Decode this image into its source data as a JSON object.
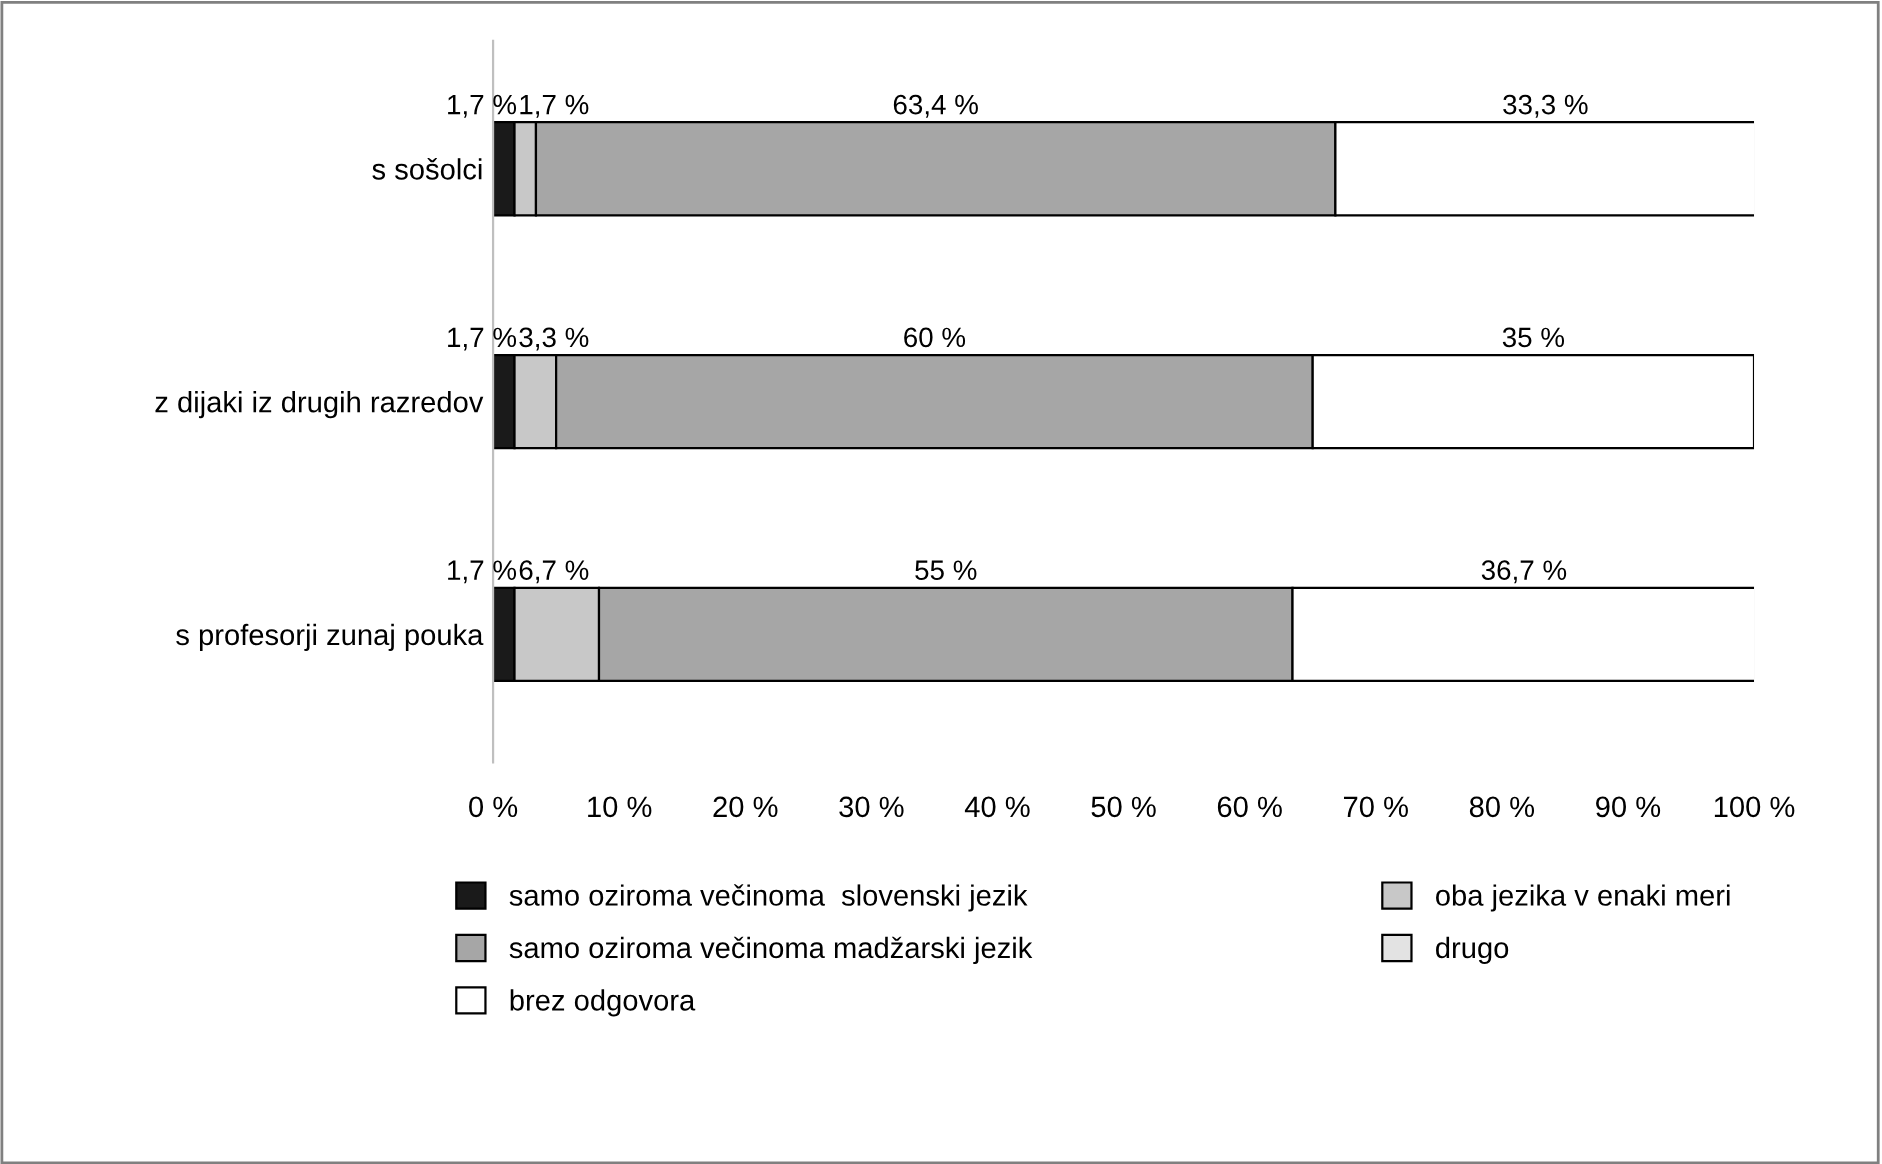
{
  "chart_data": {
    "type": "bar",
    "orientation": "horizontal",
    "stacked": true,
    "categories": [
      "s sošolci",
      "z dijaki iz drugih razredov",
      "s profesorji zunaj pouka"
    ],
    "series": [
      {
        "name": "samo oziroma večinoma  slovenski jezik",
        "color": "#1a1a1a",
        "values": [
          1.7,
          1.7,
          1.7
        ],
        "value_labels": [
          "1,7 %",
          "1,7 %",
          "1,7 %"
        ]
      },
      {
        "name": "oba jezika v enaki meri",
        "color": "#c8c8c8",
        "values": [
          1.7,
          3.3,
          6.7
        ],
        "value_labels": [
          "1,7 %",
          "3,3 %",
          "6,7 %"
        ]
      },
      {
        "name": "samo oziroma večinoma madžarski jezik",
        "color": "#a6a6a6",
        "values": [
          63.4,
          60,
          55
        ],
        "value_labels": [
          "63,4 %",
          "60 %",
          "55 %"
        ]
      },
      {
        "name": "drugo",
        "color": "#e3e3e3",
        "values": [
          0,
          0,
          0
        ]
      },
      {
        "name": "brez odgovora",
        "color": "#ffffff",
        "values": [
          33.3,
          35,
          36.7
        ],
        "value_labels": [
          "33,3 %",
          "35 %",
          "36,7 %"
        ]
      }
    ],
    "xlim": [
      0,
      100
    ],
    "xticks": [
      {
        "value": 0,
        "label": "0 %"
      },
      {
        "value": 10,
        "label": "10 %"
      },
      {
        "value": 20,
        "label": "20 %"
      },
      {
        "value": 30,
        "label": "30 %"
      },
      {
        "value": 40,
        "label": "40 %"
      },
      {
        "value": 50,
        "label": "50 %"
      },
      {
        "value": 60,
        "label": "60 %"
      },
      {
        "value": 70,
        "label": "70 %"
      },
      {
        "value": 80,
        "label": "80 %"
      },
      {
        "value": 90,
        "label": "90 %"
      },
      {
        "value": 100,
        "label": "100 %"
      }
    ],
    "grid": false,
    "legend": "bottom"
  }
}
